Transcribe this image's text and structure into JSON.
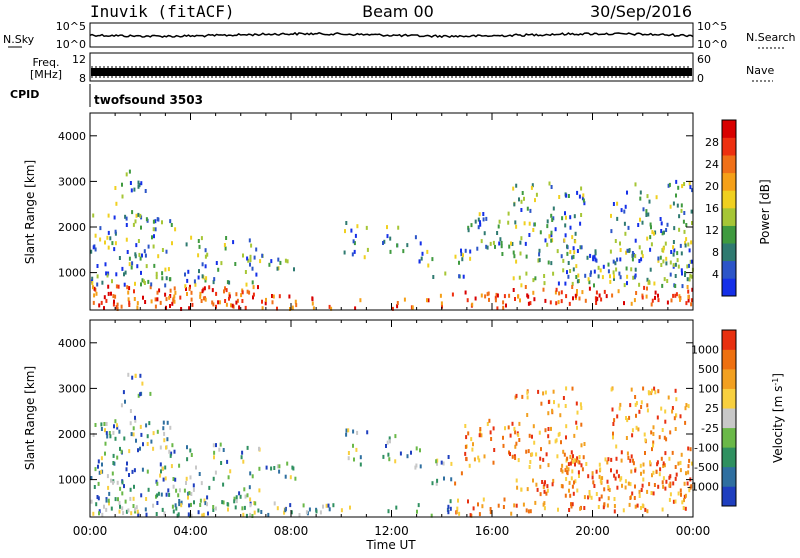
{
  "header": {
    "station": "Inuvik (fitACF)",
    "beam": "Beam 00",
    "date": "30/Sep/2016"
  },
  "strips": {
    "nsky_label": "N.Sky",
    "nsky_ticks": [
      "10^5",
      "10^0"
    ],
    "nsearch_label": "N.Search",
    "freq_label": "Freq.",
    "freq_unit": "[MHz]",
    "freq_ticks": [
      "12",
      "8"
    ],
    "nave_label": "Nave",
    "nave_ticks": [
      "60",
      "0"
    ],
    "cpid_label": "CPID",
    "cpid_value": "twofsound 3503"
  },
  "chart_data": [
    {
      "type": "heatmap",
      "panel": "power",
      "ylabel": "Slant Range [km]",
      "y_ticks": [
        1000,
        2000,
        3000,
        4000
      ],
      "ylim": [
        180,
        4500
      ],
      "x_ticks": [
        "00:00",
        "04:00",
        "08:00",
        "12:00",
        "16:00",
        "20:00",
        "00:00"
      ],
      "xlabel": "Time UT",
      "colorbar": {
        "label": "Power [dB]",
        "ticks": [
          4,
          8,
          12,
          16,
          20,
          24,
          28
        ],
        "colors": [
          "#1530e8",
          "#2c55c8",
          "#2f7a70",
          "#3f9a3f",
          "#a6c636",
          "#f0d020",
          "#f5a018",
          "#f07018",
          "#ee3010",
          "#d80000"
        ]
      }
    },
    {
      "type": "heatmap",
      "panel": "velocity",
      "ylabel": "Slant Range [km]",
      "y_ticks": [
        1000,
        2000,
        3000,
        4000
      ],
      "ylim": [
        180,
        4500
      ],
      "x_ticks": [
        "00:00",
        "04:00",
        "08:00",
        "12:00",
        "16:00",
        "20:00",
        "00:00"
      ],
      "xlabel": "Time UT",
      "colorbar": {
        "label": "Velocity [m s^-1]",
        "ticks": [
          "1000",
          "500",
          "100",
          "25",
          "-25",
          "-100",
          "-500",
          "-1000"
        ],
        "colors": [
          "#1f3fbf",
          "#2f6fa0",
          "#2f9060",
          "#6ab848",
          "#c8c8c8",
          "#f8d040",
          "#f2a020",
          "#ee7010",
          "#e83010"
        ]
      }
    }
  ]
}
